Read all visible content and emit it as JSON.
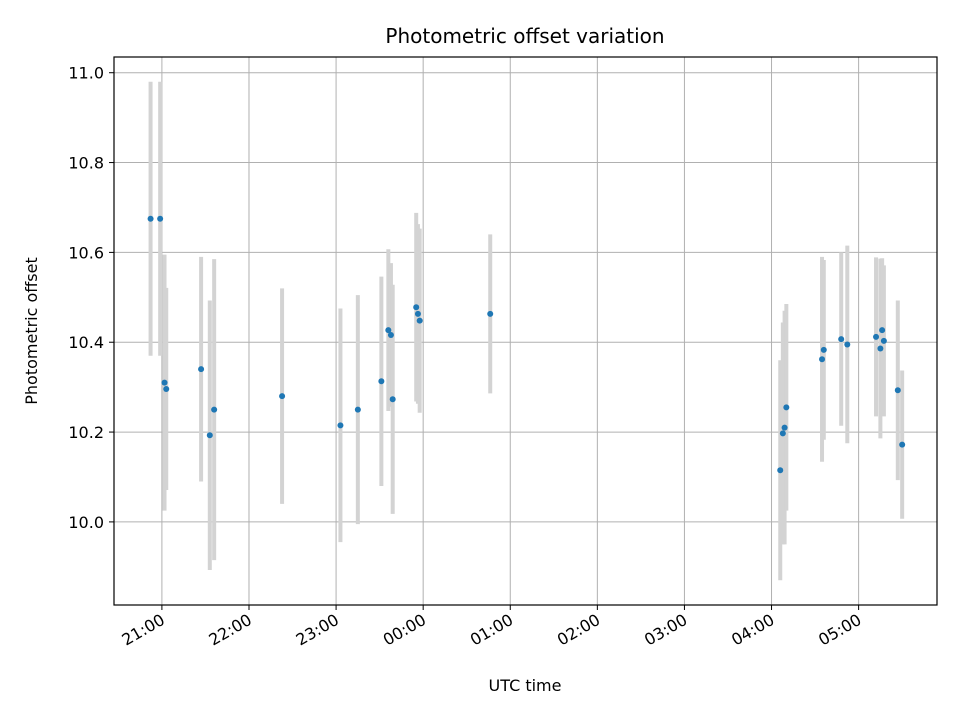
{
  "chart_data": {
    "type": "scatter",
    "title": "Photometric offset variation",
    "xlabel": "UTC time",
    "ylabel": "Photometric offset",
    "grid": true,
    "x_ticks": [
      "21:00",
      "22:00",
      "23:00",
      "00:00",
      "01:00",
      "02:00",
      "03:00",
      "04:00",
      "05:00"
    ],
    "x_tick_hours": [
      21,
      22,
      23,
      24,
      25,
      26,
      27,
      28,
      29
    ],
    "xlim_hours": [
      20.45,
      29.9
    ],
    "y_ticks": [
      "10.0",
      "10.2",
      "10.4",
      "10.6",
      "10.8",
      "11.0"
    ],
    "y_tick_values": [
      10.0,
      10.2,
      10.4,
      10.6,
      10.8,
      11.0
    ],
    "ylim": [
      9.815,
      11.035
    ],
    "colors": {
      "points": "#1f77b4",
      "error_bars": "#d3d3d3",
      "grid": "#b0b0b0"
    },
    "points": [
      {
        "x_hours": 20.87,
        "y": 10.675,
        "yerr": 0.305
      },
      {
        "x_hours": 20.98,
        "y": 10.675,
        "yerr": 0.305
      },
      {
        "x_hours": 21.03,
        "y": 10.31,
        "yerr": 0.285
      },
      {
        "x_hours": 21.05,
        "y": 10.296,
        "yerr": 0.225
      },
      {
        "x_hours": 21.45,
        "y": 10.34,
        "yerr": 0.25
      },
      {
        "x_hours": 21.55,
        "y": 10.193,
        "yerr": 0.3
      },
      {
        "x_hours": 21.6,
        "y": 10.25,
        "yerr": 0.335
      },
      {
        "x_hours": 22.38,
        "y": 10.28,
        "yerr": 0.24
      },
      {
        "x_hours": 23.05,
        "y": 10.215,
        "yerr": 0.26
      },
      {
        "x_hours": 23.25,
        "y": 10.25,
        "yerr": 0.255
      },
      {
        "x_hours": 23.52,
        "y": 10.313,
        "yerr": 0.233
      },
      {
        "x_hours": 23.6,
        "y": 10.427,
        "yerr": 0.18
      },
      {
        "x_hours": 23.63,
        "y": 10.416,
        "yerr": 0.16
      },
      {
        "x_hours": 23.65,
        "y": 10.273,
        "yerr": 0.255
      },
      {
        "x_hours": 23.92,
        "y": 10.478,
        "yerr": 0.21
      },
      {
        "x_hours": 23.94,
        "y": 10.463,
        "yerr": 0.2
      },
      {
        "x_hours": 23.96,
        "y": 10.448,
        "yerr": 0.205
      },
      {
        "x_hours": 24.77,
        "y": 10.463,
        "yerr": 0.177
      },
      {
        "x_hours": 28.1,
        "y": 10.115,
        "yerr": 0.245
      },
      {
        "x_hours": 28.13,
        "y": 10.197,
        "yerr": 0.247
      },
      {
        "x_hours": 28.15,
        "y": 10.21,
        "yerr": 0.26
      },
      {
        "x_hours": 28.17,
        "y": 10.255,
        "yerr": 0.23
      },
      {
        "x_hours": 28.58,
        "y": 10.362,
        "yerr": 0.228
      },
      {
        "x_hours": 28.6,
        "y": 10.383,
        "yerr": 0.2
      },
      {
        "x_hours": 28.8,
        "y": 10.407,
        "yerr": 0.193
      },
      {
        "x_hours": 28.87,
        "y": 10.395,
        "yerr": 0.22
      },
      {
        "x_hours": 29.2,
        "y": 10.412,
        "yerr": 0.177
      },
      {
        "x_hours": 29.25,
        "y": 10.386,
        "yerr": 0.2
      },
      {
        "x_hours": 29.27,
        "y": 10.427,
        "yerr": 0.16
      },
      {
        "x_hours": 29.29,
        "y": 10.403,
        "yerr": 0.168
      },
      {
        "x_hours": 29.45,
        "y": 10.293,
        "yerr": 0.2
      },
      {
        "x_hours": 29.5,
        "y": 10.172,
        "yerr": 0.165
      }
    ]
  }
}
